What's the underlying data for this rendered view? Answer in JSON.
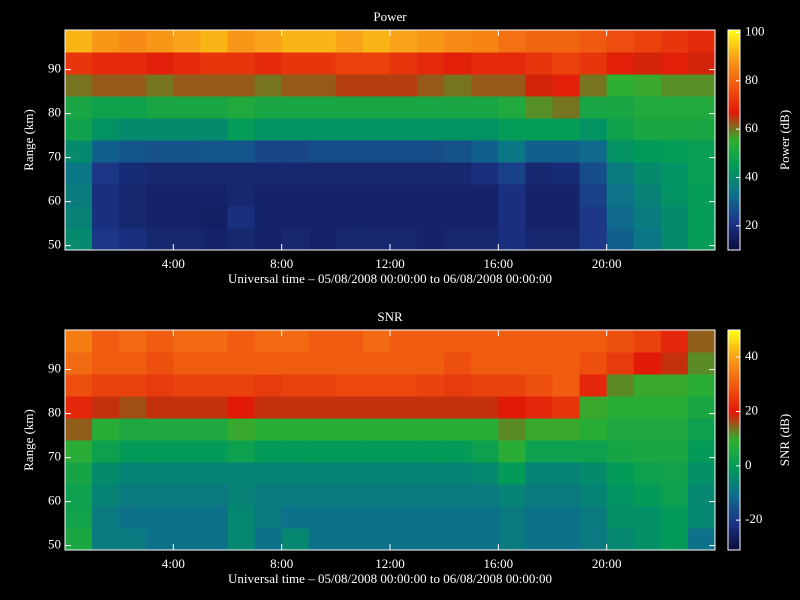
{
  "chart_data": [
    {
      "type": "heatmap",
      "title": "Power",
      "xlabel": "Universal time – 05/08/2008 00:00:00 to 06/08/2008 00:00:00",
      "ylabel": "Range (km)",
      "colorbar_label": "Power (dB)",
      "xlim": [
        0,
        24
      ],
      "xticks": [
        {
          "value": 4,
          "label": "4:00"
        },
        {
          "value": 8,
          "label": "8:00"
        },
        {
          "value": 12,
          "label": "12:00"
        },
        {
          "value": 16,
          "label": "16:00"
        },
        {
          "value": 20,
          "label": "20:00"
        }
      ],
      "ylim": [
        49,
        99
      ],
      "yticks": [
        50,
        60,
        70,
        80,
        90
      ],
      "clim": [
        10,
        101
      ],
      "cticks": [
        20,
        40,
        60,
        80,
        100
      ],
      "colormap": [
        "#0a0a3c",
        "#1c3486",
        "#0e6e8e",
        "#009a5a",
        "#30b030",
        "#e01808",
        "#f05a10",
        "#f8a018",
        "#ffff10"
      ],
      "x": [
        0.5,
        1.5,
        2.5,
        3.5,
        4.5,
        5.5,
        6.5,
        7.5,
        8.5,
        9.5,
        10.5,
        11.5,
        12.5,
        13.5,
        14.5,
        15.5,
        16.5,
        17.5,
        18.5,
        19.5,
        20.5,
        21.5,
        22.5,
        23.5
      ],
      "y": [
        51.5,
        56.5,
        61.5,
        66.5,
        71.5,
        76.5,
        81.5,
        86.5,
        91.5,
        96.5
      ],
      "z": [
        [
          40,
          22,
          20,
          18,
          18,
          17,
          18,
          17,
          18,
          17,
          18,
          18,
          18,
          17,
          18,
          18,
          20,
          18,
          18,
          22,
          30,
          35,
          40,
          45
        ],
        [
          38,
          20,
          18,
          17,
          17,
          16,
          20,
          17,
          17,
          17,
          17,
          17,
          17,
          17,
          17,
          17,
          20,
          17,
          17,
          22,
          32,
          36,
          40,
          45
        ],
        [
          36,
          20,
          18,
          17,
          17,
          17,
          18,
          17,
          17,
          17,
          17,
          17,
          17,
          17,
          17,
          17,
          20,
          17,
          17,
          24,
          34,
          38,
          42,
          45
        ],
        [
          35,
          22,
          19,
          18,
          18,
          18,
          18,
          18,
          18,
          18,
          18,
          18,
          18,
          18,
          18,
          20,
          24,
          18,
          19,
          26,
          36,
          40,
          42,
          46
        ],
        [
          40,
          30,
          28,
          27,
          27,
          28,
          28,
          25,
          25,
          26,
          26,
          26,
          26,
          26,
          27,
          30,
          35,
          30,
          30,
          32,
          42,
          44,
          45,
          46
        ],
        [
          48,
          42,
          40,
          40,
          40,
          40,
          45,
          42,
          42,
          42,
          42,
          42,
          42,
          42,
          42,
          42,
          45,
          45,
          45,
          42,
          48,
          50,
          50,
          50
        ],
        [
          50,
          48,
          48,
          50,
          50,
          50,
          52,
          50,
          50,
          50,
          50,
          50,
          50,
          50,
          50,
          50,
          52,
          58,
          60,
          50,
          50,
          52,
          52,
          52
        ],
        [
          60,
          62,
          62,
          60,
          62,
          62,
          62,
          60,
          62,
          62,
          64,
          64,
          64,
          62,
          60,
          62,
          62,
          66,
          68,
          60,
          55,
          56,
          58,
          58
        ],
        [
          72,
          70,
          70,
          68,
          70,
          72,
          72,
          70,
          72,
          72,
          74,
          74,
          72,
          70,
          68,
          70,
          70,
          72,
          74,
          72,
          68,
          66,
          68,
          66
        ],
        [
          92,
          88,
          86,
          88,
          90,
          92,
          88,
          90,
          92,
          92,
          90,
          92,
          90,
          88,
          86,
          85,
          82,
          80,
          80,
          78,
          76,
          74,
          72,
          70
        ]
      ]
    },
    {
      "type": "heatmap",
      "title": "SNR",
      "xlabel": "Universal time – 05/08/2008 00:00:00 to 06/08/2008 00:00:00",
      "ylabel": "Range (km)",
      "colorbar_label": "SNR (dB)",
      "xlim": [
        0,
        24
      ],
      "xticks": [
        {
          "value": 4,
          "label": "4:00"
        },
        {
          "value": 8,
          "label": "8:00"
        },
        {
          "value": 12,
          "label": "12:00"
        },
        {
          "value": 16,
          "label": "16:00"
        },
        {
          "value": 20,
          "label": "20:00"
        }
      ],
      "ylim": [
        49,
        99
      ],
      "yticks": [
        50,
        60,
        70,
        80,
        90
      ],
      "clim": [
        -31,
        50
      ],
      "cticks": [
        -20,
        0,
        20,
        40
      ],
      "colormap": [
        "#0a0a3c",
        "#1c3486",
        "#0e6e8e",
        "#009a5a",
        "#30b030",
        "#e01808",
        "#f05a10",
        "#f8a018",
        "#ffff10"
      ],
      "x": [
        0.5,
        1.5,
        2.5,
        3.5,
        4.5,
        5.5,
        6.5,
        7.5,
        8.5,
        9.5,
        10.5,
        11.5,
        12.5,
        13.5,
        14.5,
        15.5,
        16.5,
        17.5,
        18.5,
        19.5,
        20.5,
        21.5,
        22.5,
        23.5
      ],
      "y": [
        51.5,
        56.5,
        61.5,
        66.5,
        71.5,
        76.5,
        81.5,
        86.5,
        91.5,
        96.5
      ],
      "z": [
        [
          5,
          -8,
          -8,
          -10,
          -10,
          -10,
          -5,
          -10,
          -5,
          -10,
          -10,
          -10,
          -10,
          -10,
          -10,
          -10,
          -8,
          -10,
          -10,
          -8,
          -5,
          -3,
          0,
          -10
        ],
        [
          3,
          -8,
          -10,
          -10,
          -10,
          -10,
          -5,
          -8,
          -10,
          -10,
          -10,
          -10,
          -10,
          -10,
          -10,
          -10,
          -8,
          -10,
          -10,
          -8,
          -3,
          -3,
          0,
          -5
        ],
        [
          2,
          -6,
          -8,
          -8,
          -8,
          -8,
          -6,
          -8,
          -8,
          -8,
          -8,
          -8,
          -8,
          -8,
          -8,
          -8,
          -6,
          -8,
          -8,
          -6,
          -2,
          0,
          2,
          -5
        ],
        [
          4,
          -4,
          -6,
          -6,
          -6,
          -6,
          -6,
          -6,
          -6,
          -6,
          -6,
          -6,
          -6,
          -6,
          -6,
          -5,
          0,
          -6,
          -6,
          -4,
          0,
          2,
          3,
          -3
        ],
        [
          8,
          2,
          0,
          0,
          0,
          0,
          2,
          0,
          0,
          0,
          0,
          0,
          0,
          0,
          0,
          2,
          8,
          2,
          2,
          2,
          4,
          5,
          5,
          0
        ],
        [
          15,
          8,
          6,
          6,
          6,
          6,
          10,
          8,
          8,
          8,
          8,
          8,
          8,
          8,
          8,
          8,
          12,
          10,
          10,
          8,
          6,
          6,
          6,
          2
        ],
        [
          22,
          18,
          16,
          18,
          18,
          18,
          20,
          18,
          18,
          18,
          18,
          18,
          18,
          18,
          18,
          18,
          20,
          22,
          24,
          10,
          8,
          8,
          8,
          5
        ],
        [
          28,
          26,
          26,
          25,
          26,
          26,
          26,
          25,
          26,
          26,
          27,
          27,
          27,
          26,
          25,
          26,
          26,
          28,
          30,
          22,
          12,
          10,
          10,
          8
        ],
        [
          32,
          30,
          30,
          28,
          30,
          30,
          30,
          30,
          30,
          30,
          30,
          30,
          30,
          30,
          28,
          30,
          30,
          30,
          30,
          28,
          25,
          20,
          18,
          12
        ],
        [
          35,
          30,
          32,
          30,
          32,
          32,
          30,
          32,
          32,
          30,
          30,
          32,
          30,
          30,
          30,
          30,
          30,
          30,
          30,
          30,
          28,
          26,
          22,
          15
        ]
      ]
    }
  ]
}
